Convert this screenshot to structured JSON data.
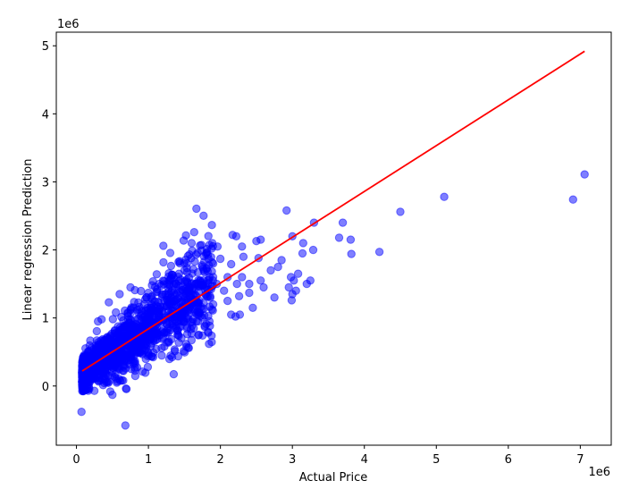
{
  "chart_data": {
    "type": "scatter",
    "title": "",
    "xlabel": "Actual Price",
    "ylabel": "Linear regression Prediction",
    "x_offset_label": "1e6",
    "y_offset_label": "1e6",
    "xlim": [
      -280000,
      7430000
    ],
    "ylim": [
      -870000,
      5200000
    ],
    "x_ticks": [
      0,
      1000000,
      2000000,
      3000000,
      4000000,
      5000000,
      6000000,
      7000000
    ],
    "x_tick_labels": [
      "0",
      "1",
      "2",
      "3",
      "4",
      "5",
      "6",
      "7"
    ],
    "y_ticks": [
      0,
      1000000,
      2000000,
      3000000,
      4000000,
      5000000
    ],
    "y_tick_labels": [
      "0",
      "1",
      "2",
      "3",
      "4",
      "5"
    ],
    "grid": false,
    "colors": {
      "points": "#0000ff",
      "fit_line": "#ff0000"
    },
    "point_alpha": 0.5,
    "dense_cluster": {
      "description_free": true,
      "x_range": [
        80000,
        1900000
      ],
      "approx_point_count": 1500,
      "relation": {
        "slope": 0.72,
        "intercept": 130000,
        "spread_frac": 0.25
      }
    },
    "series": [
      {
        "name": "",
        "values": [
          [
            7060000,
            3110000
          ],
          [
            6900000,
            2740000
          ],
          [
            5110000,
            2780000
          ],
          [
            4500000,
            2560000
          ],
          [
            4210000,
            1970000
          ],
          [
            3810000,
            2150000
          ],
          [
            3820000,
            1940000
          ],
          [
            3700000,
            2400000
          ],
          [
            3650000,
            2180000
          ],
          [
            3300000,
            2400000
          ],
          [
            3290000,
            2000000
          ],
          [
            3150000,
            2100000
          ],
          [
            3140000,
            1950000
          ],
          [
            3000000,
            2200000
          ],
          [
            3020000,
            1550000
          ],
          [
            3080000,
            1650000
          ],
          [
            3200000,
            1500000
          ],
          [
            3250000,
            1550000
          ],
          [
            2920000,
            2580000
          ],
          [
            2950000,
            1450000
          ],
          [
            2980000,
            1600000
          ],
          [
            3050000,
            1400000
          ],
          [
            2990000,
            1260000
          ],
          [
            3000000,
            1350000
          ],
          [
            2850000,
            1850000
          ],
          [
            2800000,
            1750000
          ],
          [
            2700000,
            1700000
          ],
          [
            2750000,
            1300000
          ],
          [
            2560000,
            2150000
          ],
          [
            2500000,
            2130000
          ],
          [
            2530000,
            1880000
          ],
          [
            2600000,
            1450000
          ],
          [
            2560000,
            1550000
          ],
          [
            2450000,
            1150000
          ],
          [
            2400000,
            1370000
          ],
          [
            2320000,
            1900000
          ],
          [
            2300000,
            2050000
          ],
          [
            2220000,
            2200000
          ],
          [
            2170000,
            2220000
          ],
          [
            2150000,
            1790000
          ],
          [
            2230000,
            1500000
          ],
          [
            2260000,
            1320000
          ],
          [
            2270000,
            1050000
          ],
          [
            2210000,
            1020000
          ],
          [
            2000000,
            1870000
          ],
          [
            1960000,
            2050000
          ],
          [
            1900000,
            1800000
          ],
          [
            1810000,
            1720000
          ],
          [
            1600000,
            2100000
          ],
          [
            1500000,
            1700000
          ],
          [
            2300000,
            1600000
          ],
          [
            2100000,
            1600000
          ],
          [
            2050000,
            1400000
          ],
          [
            1950000,
            1500000
          ],
          [
            2100000,
            1250000
          ],
          [
            2400000,
            1500000
          ],
          [
            1800000,
            1450000
          ],
          [
            1900000,
            1200000
          ],
          [
            1850000,
            1600000
          ],
          [
            2150000,
            1050000
          ],
          [
            680000,
            -580000
          ],
          [
            70000,
            -380000
          ],
          [
            500000,
            -130000
          ],
          [
            470000,
            -80000
          ],
          [
            650000,
            80000
          ],
          [
            560000,
            50000
          ],
          [
            400000,
            100000
          ],
          [
            760000,
            250000
          ],
          [
            300000,
            950000
          ],
          [
            350000,
            980000
          ],
          [
            450000,
            1230000
          ],
          [
            600000,
            1350000
          ],
          [
            750000,
            1450000
          ],
          [
            1050000,
            1480000
          ],
          [
            1150000,
            1500000
          ],
          [
            1300000,
            1550000
          ]
        ]
      }
    ],
    "fit_line": {
      "x": [
        80000,
        7060000
      ],
      "y": [
        220000,
        4920000
      ]
    }
  }
}
